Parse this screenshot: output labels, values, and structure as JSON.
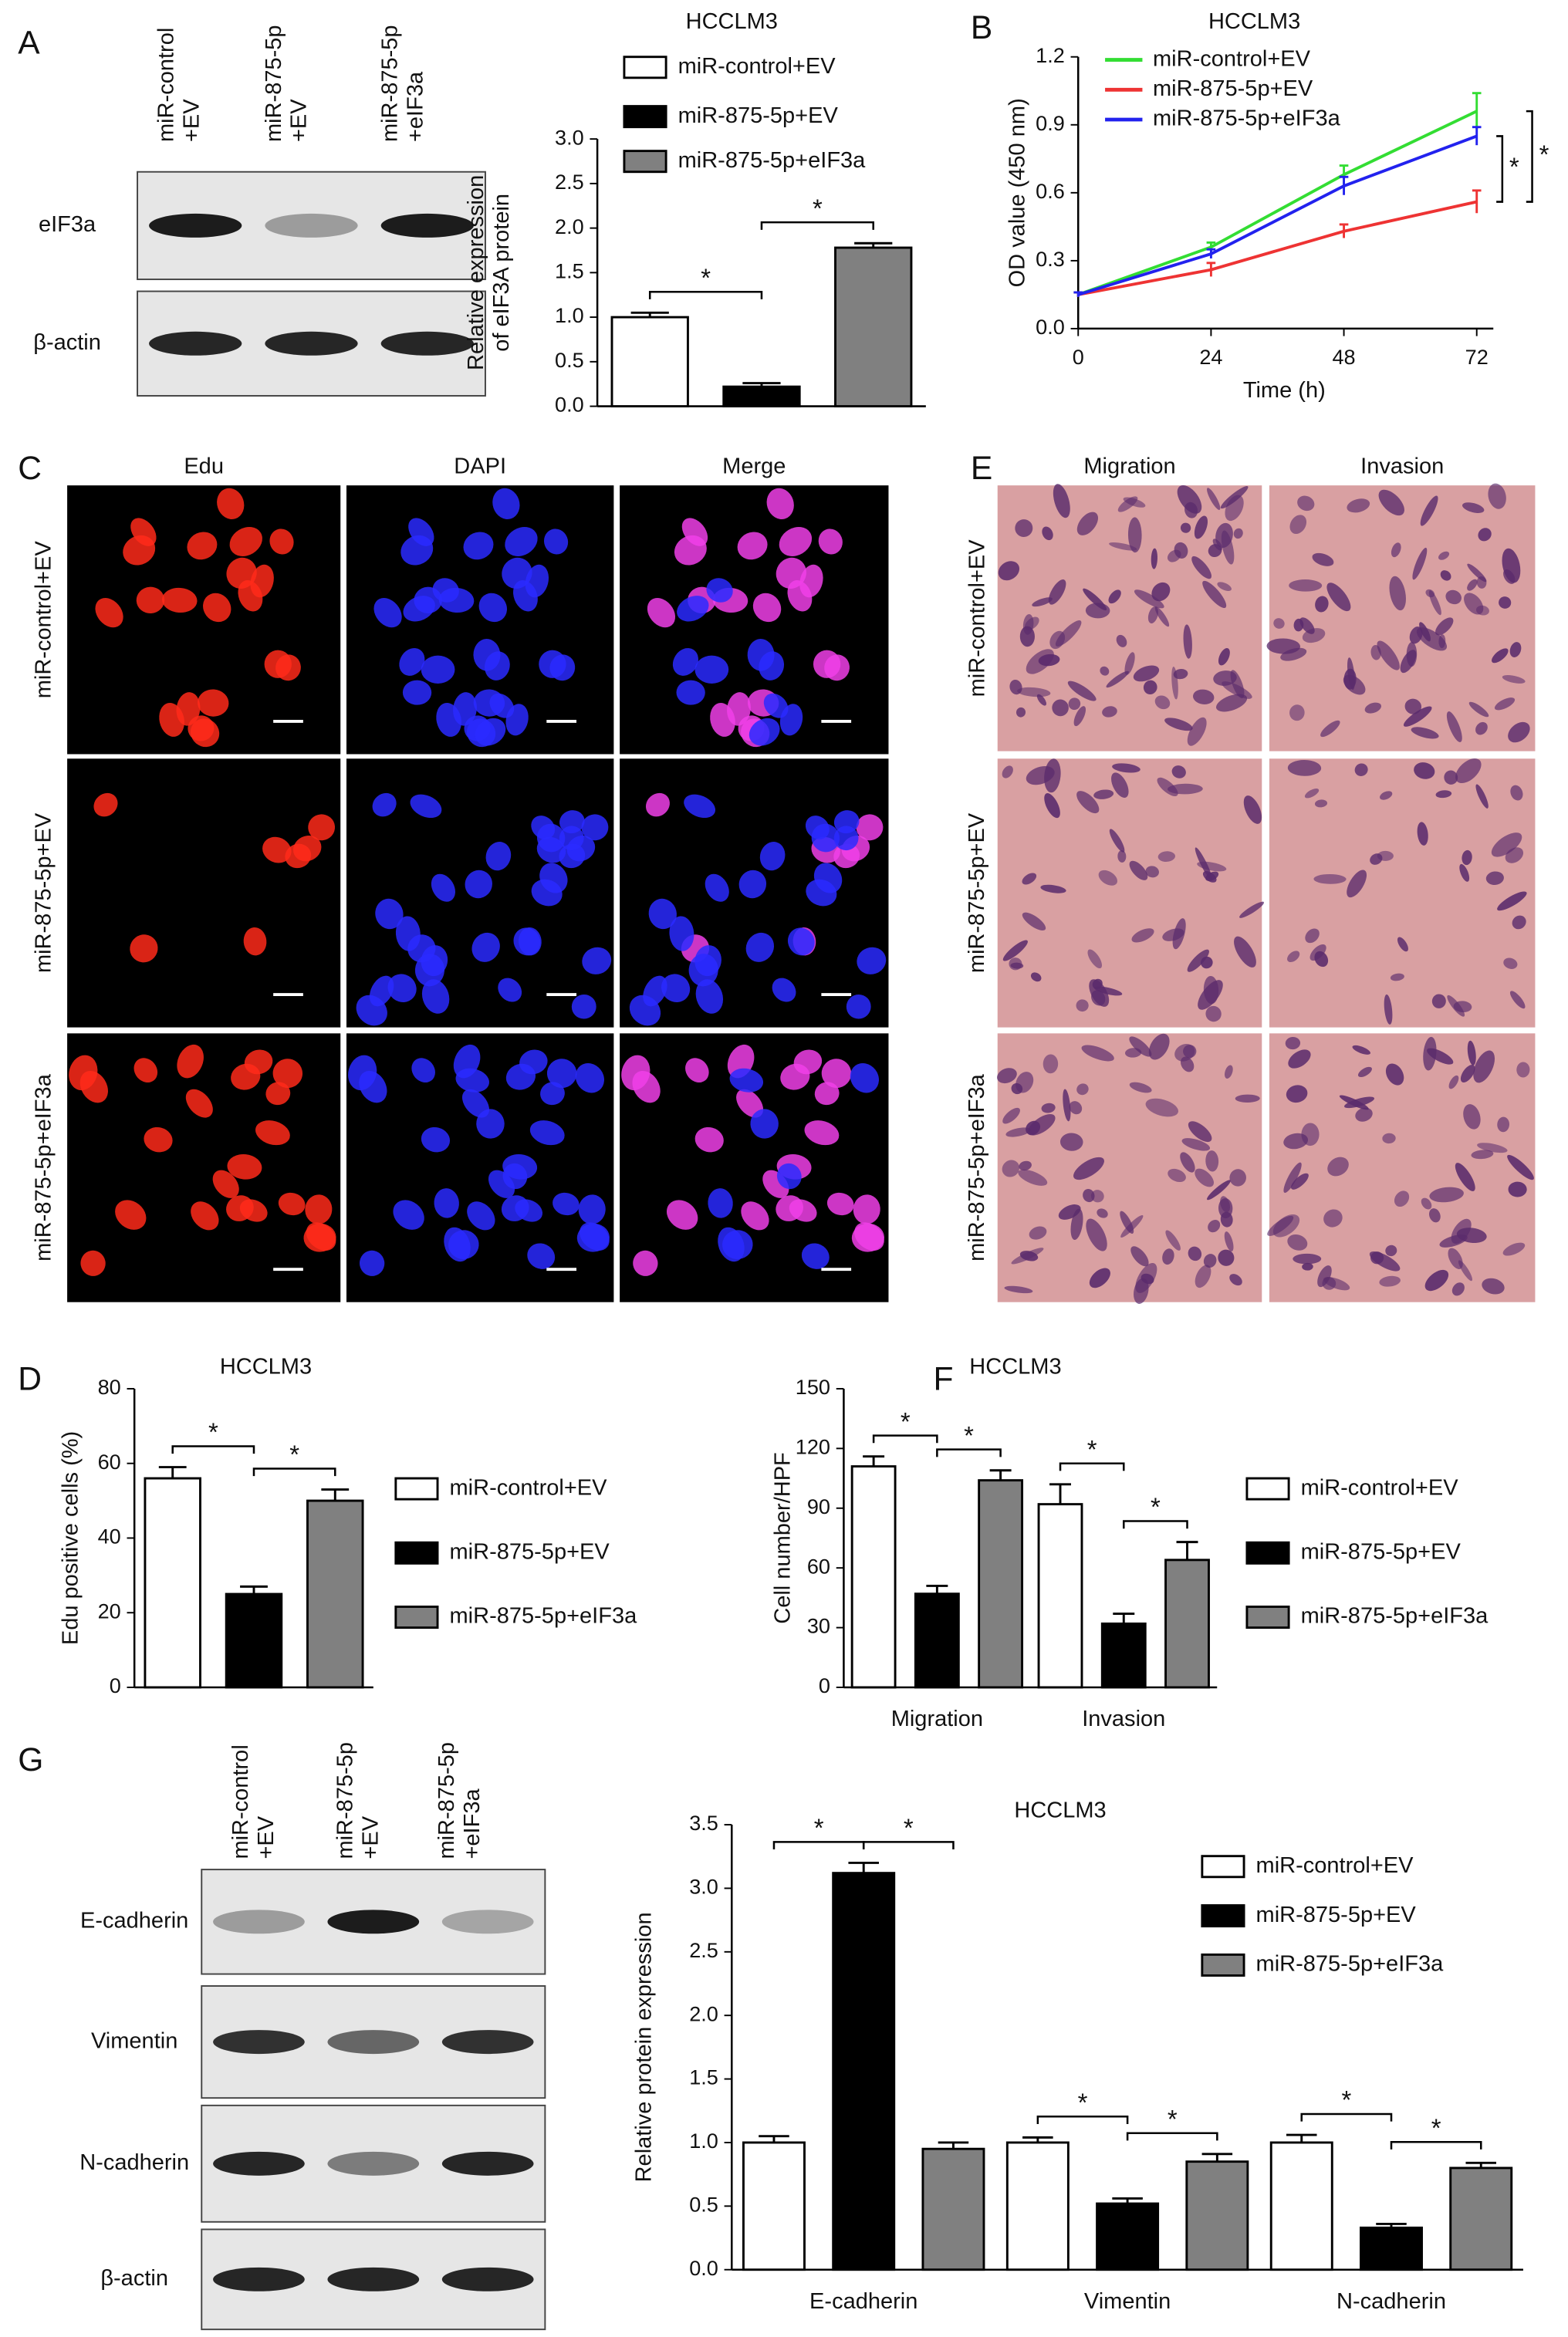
{
  "letters": [
    "A",
    "B",
    "C",
    "D",
    "E",
    "F",
    "G"
  ],
  "blot_a": {
    "lanes": [
      [
        "miR-control",
        "+EV"
      ],
      [
        "miR-875-5p",
        "+EV"
      ],
      [
        "miR-875-5p",
        "+eIF3a"
      ]
    ],
    "rows": [
      "eIF3a",
      "β-actin"
    ]
  },
  "edu": {
    "columns": [
      "Edu",
      "DAPI",
      "Merge"
    ],
    "rows": [
      "miR-control+EV",
      "miR-875-5p+EV",
      "miR-875-5p+eIF3a"
    ]
  },
  "transwell": {
    "columns": [
      "Migration",
      "Invasion"
    ],
    "rows": [
      "miR-control+EV",
      "miR-875-5p+EV",
      "miR-875-5p+eIF3a"
    ]
  },
  "blot_g": {
    "lanes": [
      [
        "miR-control",
        "+EV"
      ],
      [
        "miR-875-5p",
        "+EV"
      ],
      [
        "miR-875-5p",
        "+eIF3a"
      ]
    ],
    "rows": [
      "E-cadherin",
      "Vimentin",
      "N-cadherin",
      "β-actin"
    ]
  },
  "chart_data": [
    {
      "type": "bar",
      "title": "HCCLM3",
      "ylabel": [
        "Relative expression",
        "of eIF3A protein"
      ],
      "categories": [
        null
      ],
      "series": [
        {
          "name": "miR-control+EV",
          "color": "#ffffff",
          "values": [
            1.0
          ],
          "errors": [
            0.05
          ]
        },
        {
          "name": "miR-875-5p+EV",
          "color": "#000000",
          "values": [
            0.22
          ],
          "errors": [
            0.04
          ]
        },
        {
          "name": "miR-875-5p+eIF3a",
          "color": "#808080",
          "values": [
            1.78
          ],
          "errors": [
            0.05
          ]
        }
      ],
      "ylim": [
        0,
        3
      ],
      "yticks": [
        {
          "value": 0,
          "label": "0.0"
        },
        0.5,
        {
          "value": 1,
          "label": "1.0"
        },
        1.5,
        {
          "value": 2,
          "label": "2.0"
        },
        2.5,
        {
          "value": 3,
          "label": "3.0"
        }
      ],
      "significance": [
        {
          "category": 0,
          "series": [
            0,
            1
          ],
          "label": "*"
        },
        {
          "category": 0,
          "series": [
            1,
            2
          ],
          "label": "*"
        }
      ]
    },
    {
      "type": "line",
      "title": "HCCLM3",
      "xlabel": "Time (h)",
      "ylabel": [
        "OD value (450 nm)"
      ],
      "x": [
        0,
        24,
        48,
        72
      ],
      "xlim": [
        0,
        75
      ],
      "xticks": [
        0,
        24,
        48,
        72
      ],
      "series": [
        {
          "name": "miR-control+EV",
          "color": "#33dd33",
          "values": [
            0.15,
            0.36,
            0.68,
            0.96
          ],
          "errors": [
            0.01,
            0.02,
            0.04,
            0.08
          ]
        },
        {
          "name": "miR-875-5p+EV",
          "color": "#ee3333",
          "values": [
            0.15,
            0.26,
            0.43,
            0.56
          ],
          "errors": [
            0.01,
            0.03,
            0.03,
            0.05
          ]
        },
        {
          "name": "miR-875-5p+eIF3a",
          "color": "#2222ee",
          "values": [
            0.15,
            0.33,
            0.63,
            0.85
          ],
          "errors": [
            0.01,
            0.02,
            0.04,
            0.04
          ]
        }
      ],
      "ylim": [
        0,
        1.2
      ],
      "yticks": [
        {
          "value": 0,
          "label": "0.0"
        },
        0.3,
        0.6,
        0.9,
        1.2
      ],
      "significance": [
        {
          "series": [
            1,
            2
          ],
          "label": "*"
        },
        {
          "series": [
            1,
            0
          ],
          "label": "*"
        }
      ]
    },
    {
      "type": "bar",
      "title": "HCCLM3",
      "ylabel": [
        "Edu positive cells (%)"
      ],
      "categories": [
        null
      ],
      "series": [
        {
          "name": "miR-control+EV",
          "color": "#ffffff",
          "values": [
            56
          ],
          "errors": [
            3
          ]
        },
        {
          "name": "miR-875-5p+EV",
          "color": "#000000",
          "values": [
            25
          ],
          "errors": [
            2
          ]
        },
        {
          "name": "miR-875-5p+eIF3a",
          "color": "#808080",
          "values": [
            50
          ],
          "errors": [
            3
          ]
        }
      ],
      "ylim": [
        0,
        80
      ],
      "yticks": [
        0,
        20,
        40,
        60,
        80
      ],
      "significance": [
        {
          "category": 0,
          "series": [
            0,
            1
          ],
          "label": "*"
        },
        {
          "category": 0,
          "series": [
            1,
            2
          ],
          "label": "*"
        }
      ]
    },
    {
      "type": "bar",
      "title": "HCCLM3",
      "ylabel": [
        "Cell number/HPF"
      ],
      "categories": [
        "Migration",
        "Invasion"
      ],
      "series": [
        {
          "name": "miR-control+EV",
          "color": "#ffffff",
          "values": [
            111,
            92
          ],
          "errors": [
            5,
            10
          ]
        },
        {
          "name": "miR-875-5p+EV",
          "color": "#000000",
          "values": [
            47,
            32
          ],
          "errors": [
            4,
            5
          ]
        },
        {
          "name": "miR-875-5p+eIF3a",
          "color": "#808080",
          "values": [
            104,
            64
          ],
          "errors": [
            5,
            9
          ]
        }
      ],
      "ylim": [
        0,
        150
      ],
      "yticks": [
        0,
        30,
        60,
        90,
        120,
        150
      ],
      "significance": [
        {
          "category": 0,
          "series": [
            0,
            1
          ],
          "label": "*"
        },
        {
          "category": 0,
          "series": [
            1,
            2
          ],
          "label": "*"
        },
        {
          "category": 1,
          "series": [
            0,
            1
          ],
          "label": "*"
        },
        {
          "category": 1,
          "series": [
            1,
            2
          ],
          "label": "*"
        }
      ]
    },
    {
      "type": "bar",
      "title": "HCCLM3",
      "ylabel": [
        "Relative protein expression"
      ],
      "categories": [
        "E-cadherin",
        "Vimentin",
        "N-cadherin"
      ],
      "series": [
        {
          "name": "miR-control+EV",
          "color": "#ffffff",
          "values": [
            1.0,
            1.0,
            1.0
          ],
          "errors": [
            0.05,
            0.04,
            0.06
          ]
        },
        {
          "name": "miR-875-5p+EV",
          "color": "#000000",
          "values": [
            3.12,
            0.52,
            0.33
          ],
          "errors": [
            0.08,
            0.04,
            0.03
          ]
        },
        {
          "name": "miR-875-5p+eIF3a",
          "color": "#808080",
          "values": [
            0.95,
            0.85,
            0.8
          ],
          "errors": [
            0.05,
            0.06,
            0.04
          ]
        }
      ],
      "ylim": [
        0,
        3.5
      ],
      "yticks": [
        {
          "value": 0,
          "label": "0.0"
        },
        0.5,
        {
          "value": 1,
          "label": "1.0"
        },
        1.5,
        {
          "value": 2,
          "label": "2.0"
        },
        2.5,
        {
          "value": 3,
          "label": "3.0"
        },
        3.5
      ],
      "significance": [
        {
          "category": 0,
          "series": [
            0,
            1
          ],
          "label": "*"
        },
        {
          "category": 0,
          "series": [
            1,
            2
          ],
          "label": "*"
        },
        {
          "category": 1,
          "series": [
            0,
            1
          ],
          "label": "*"
        },
        {
          "category": 1,
          "series": [
            1,
            2
          ],
          "label": "*"
        },
        {
          "category": 2,
          "series": [
            0,
            1
          ],
          "label": "*"
        },
        {
          "category": 2,
          "series": [
            1,
            2
          ],
          "label": "*"
        }
      ]
    }
  ]
}
